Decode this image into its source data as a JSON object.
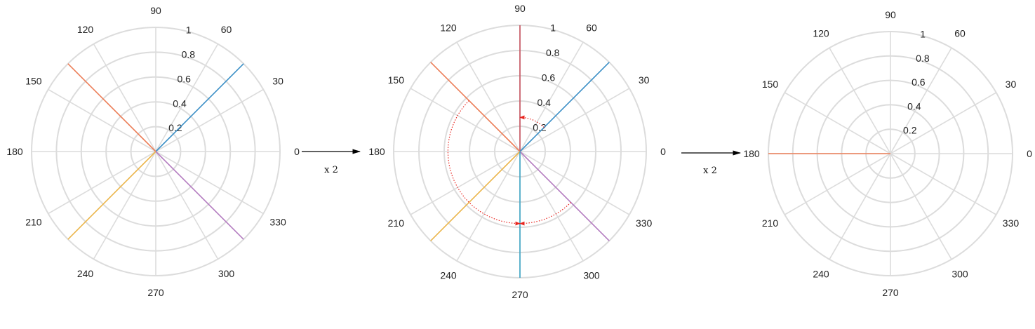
{
  "angle_labels": [
    "0",
    "30",
    "60",
    "90",
    "120",
    "150",
    "180",
    "210",
    "240",
    "270",
    "300",
    "330"
  ],
  "radial_labels": [
    "0.2",
    "0.4",
    "0.6",
    "0.8",
    "1"
  ],
  "transform_labels": [
    "x 2",
    "x 2"
  ],
  "colors": {
    "grid": "#dcdcdc",
    "blue": "#3b8fc6",
    "orange": "#ec7e58",
    "yellow": "#ebb54a",
    "purple": "#b47cc0",
    "red": "#c7505d",
    "teal": "#3aa3c4",
    "arrow_red": "#e8251f"
  },
  "chart_data": [
    {
      "type": "polar",
      "rays": [
        {
          "angle": 45,
          "r": 1,
          "color": "blue"
        },
        {
          "angle": 135,
          "r": 1,
          "color": "orange"
        },
        {
          "angle": 225,
          "r": 1,
          "color": "yellow"
        },
        {
          "angle": 315,
          "r": 1,
          "color": "purple"
        }
      ]
    },
    {
      "type": "polar",
      "rays": [
        {
          "angle": 90,
          "r": 1,
          "color": "red"
        },
        {
          "angle": 45,
          "r": 1,
          "color": "blue"
        },
        {
          "angle": 135,
          "r": 1,
          "color": "orange"
        },
        {
          "angle": 225,
          "r": 1,
          "color": "yellow"
        },
        {
          "angle": 315,
          "r": 1,
          "color": "purple"
        },
        {
          "angle": 270,
          "r": 1,
          "color": "teal"
        }
      ],
      "rotation_arcs": [
        {
          "from_angle": 45,
          "to_angle": 90,
          "r": 0.27
        },
        {
          "from_angle": 135,
          "to_angle": 270,
          "r": 0.57
        },
        {
          "from_angle": 315,
          "to_angle": 270,
          "r": 0.57
        }
      ]
    },
    {
      "type": "polar",
      "rays": [
        {
          "angle": 180,
          "r": 1,
          "color": "orange"
        }
      ]
    }
  ]
}
